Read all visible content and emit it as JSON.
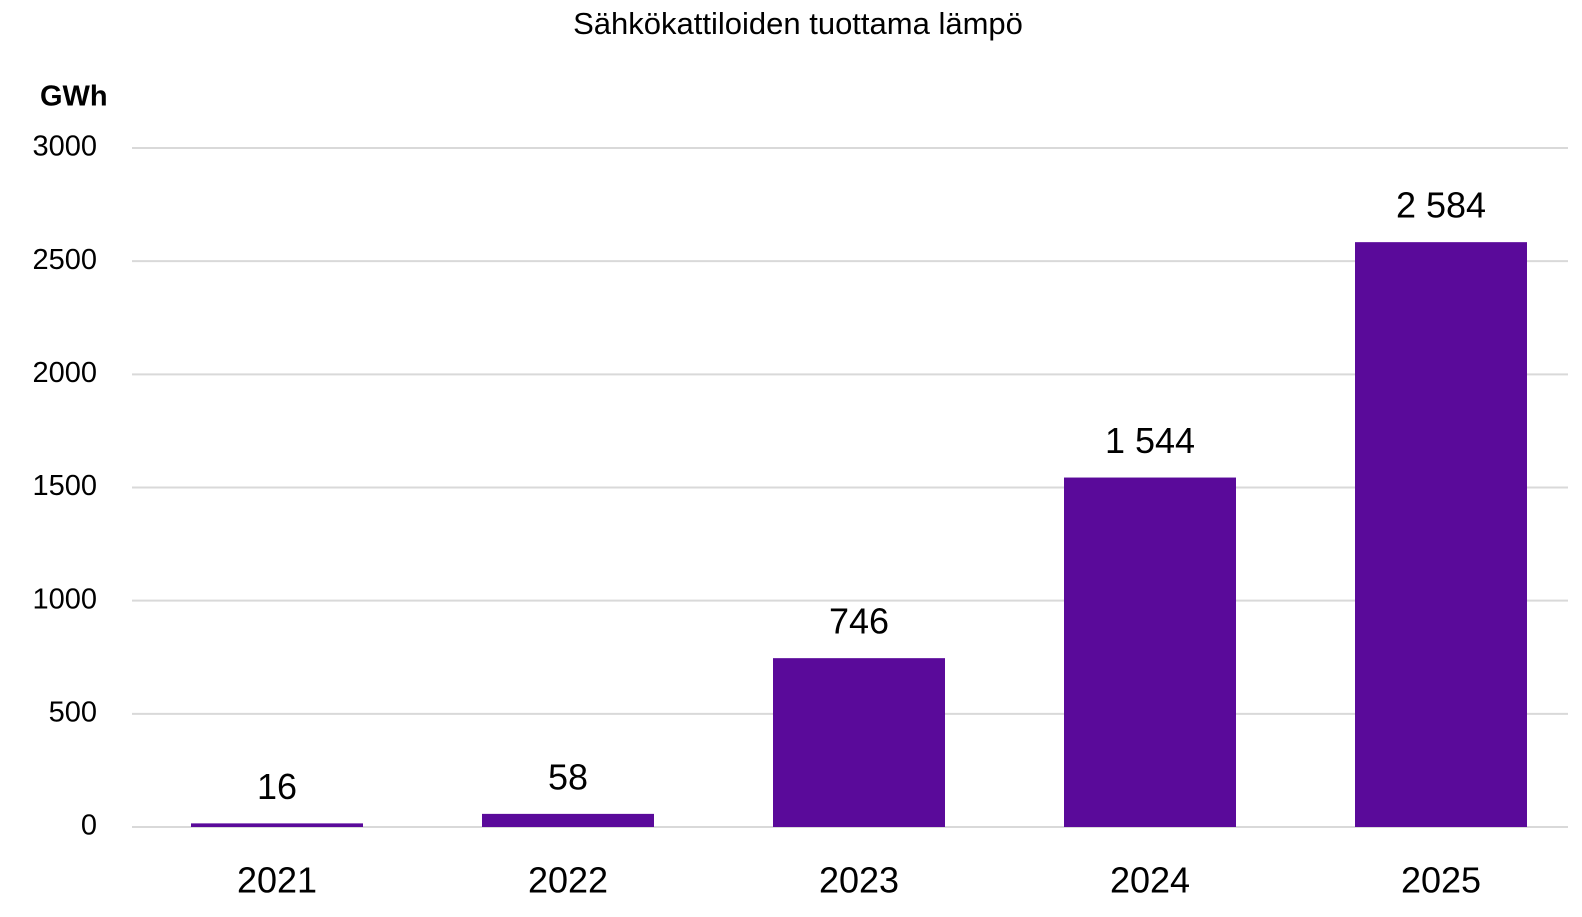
{
  "chart_data": {
    "type": "bar",
    "title": "Sähkökattiloiden tuottama lämpö",
    "y_label": "GWh",
    "categories": [
      "2021",
      "2022",
      "2023",
      "2024",
      "2025"
    ],
    "values": [
      16,
      58,
      746,
      1544,
      2584
    ],
    "value_labels": [
      "16",
      "58",
      "746",
      "1 544",
      "2 584"
    ],
    "color": "#5a0a9a",
    "ylim": [
      0,
      3000
    ],
    "yticks": [
      0,
      500,
      1000,
      1500,
      2000,
      2500,
      3000
    ],
    "grid": true
  }
}
